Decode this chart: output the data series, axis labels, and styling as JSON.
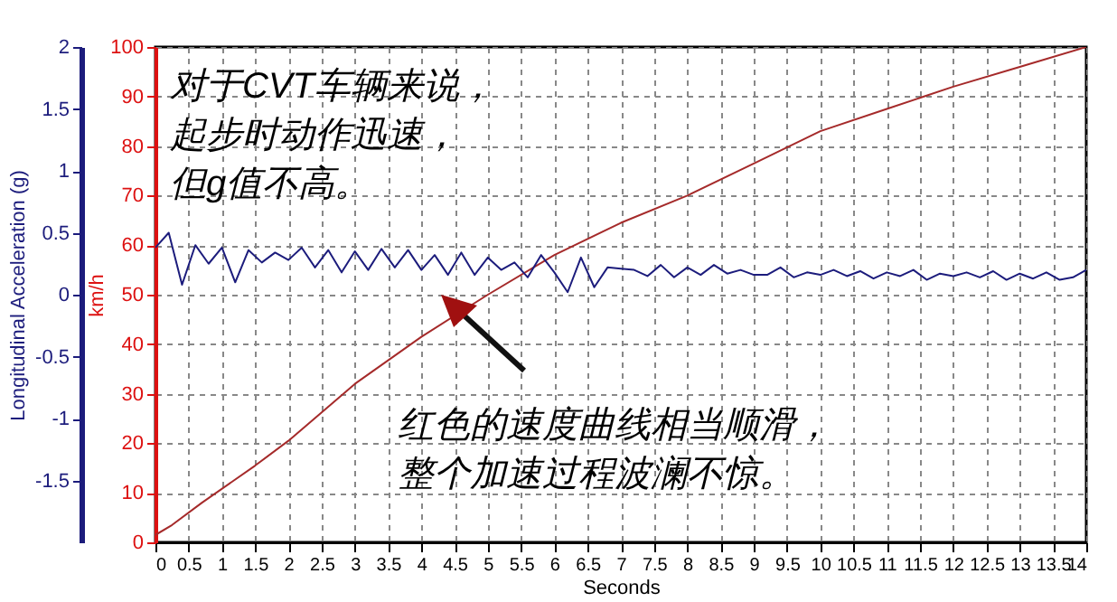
{
  "chart_data": {
    "type": "line",
    "xlabel": "Seconds",
    "ylabel": "km/h",
    "y2label": "Longitudinal Acceleration (g)",
    "xlim": [
      0,
      14
    ],
    "xticks": [
      0,
      0.5,
      1,
      1.5,
      2,
      2.5,
      3,
      3.5,
      4,
      4.5,
      5,
      5.5,
      6,
      6.5,
      7,
      7.5,
      8,
      8.5,
      9,
      9.5,
      10,
      10.5,
      11,
      11.5,
      12,
      12.5,
      13,
      13.5,
      14
    ],
    "ylim": [
      0,
      100
    ],
    "yticks": [
      0,
      10,
      20,
      30,
      40,
      50,
      60,
      70,
      80,
      90,
      100
    ],
    "y2lim": [
      -2,
      2
    ],
    "y2ticks": [
      -1.5,
      -1,
      -0.5,
      0,
      0.5,
      1,
      1.5,
      2
    ],
    "grid": true,
    "annotations": [
      "对于CVT车辆来说，起步时动作迅速，但g值不高。",
      {
        "text": "红色的速度曲线相当顺滑，整个加速过程波澜不惊。",
        "x": 4.3,
        "y": 44
      }
    ],
    "series": [
      {
        "color": "#a52a2a",
        "x": [
          0,
          0.25,
          0.7,
          1.5,
          2,
          3,
          4,
          5,
          6,
          7,
          8,
          9,
          10,
          11,
          12,
          13,
          14
        ],
        "values": [
          1.5,
          3.5,
          8,
          15.5,
          20.5,
          32,
          41.5,
          50,
          58,
          64.5,
          70,
          76.5,
          83,
          87.5,
          92,
          96,
          100
        ]
      },
      {
        "color": "#1c1c7c",
        "axis": "y2",
        "x": [
          0,
          0.2,
          0.4,
          0.6,
          0.8,
          1,
          1.2,
          1.4,
          1.6,
          1.8,
          2,
          2.2,
          2.4,
          2.6,
          2.8,
          3,
          3.2,
          3.4,
          3.6,
          3.8,
          4,
          4.2,
          4.4,
          4.6,
          4.8,
          5,
          5.2,
          5.4,
          5.6,
          5.8,
          6,
          6.2,
          6.4,
          6.6,
          6.8,
          7,
          7.2,
          7.4,
          7.6,
          7.8,
          8,
          8.2,
          8.4,
          8.6,
          8.8,
          9,
          9.2,
          9.4,
          9.6,
          9.8,
          10,
          10.2,
          10.4,
          10.6,
          10.8,
          11,
          11.2,
          11.4,
          11.6,
          11.8,
          12,
          12.2,
          12.4,
          12.6,
          12.8,
          13,
          13.2,
          13.4,
          13.6,
          13.8,
          14
        ],
        "values": [
          0.38,
          0.5,
          0.08,
          0.4,
          0.25,
          0.38,
          0.1,
          0.36,
          0.26,
          0.34,
          0.28,
          0.38,
          0.22,
          0.36,
          0.18,
          0.35,
          0.2,
          0.37,
          0.22,
          0.36,
          0.2,
          0.32,
          0.16,
          0.34,
          0.16,
          0.3,
          0.2,
          0.26,
          0.14,
          0.32,
          0.18,
          0.02,
          0.3,
          0.06,
          0.22,
          0.21,
          0.2,
          0.15,
          0.24,
          0.14,
          0.22,
          0.16,
          0.24,
          0.17,
          0.2,
          0.16,
          0.16,
          0.22,
          0.14,
          0.18,
          0.16,
          0.2,
          0.15,
          0.19,
          0.13,
          0.18,
          0.15,
          0.2,
          0.12,
          0.17,
          0.15,
          0.18,
          0.14,
          0.19,
          0.12,
          0.17,
          0.13,
          0.18,
          0.12,
          0.14,
          0.2
        ]
      }
    ]
  }
}
